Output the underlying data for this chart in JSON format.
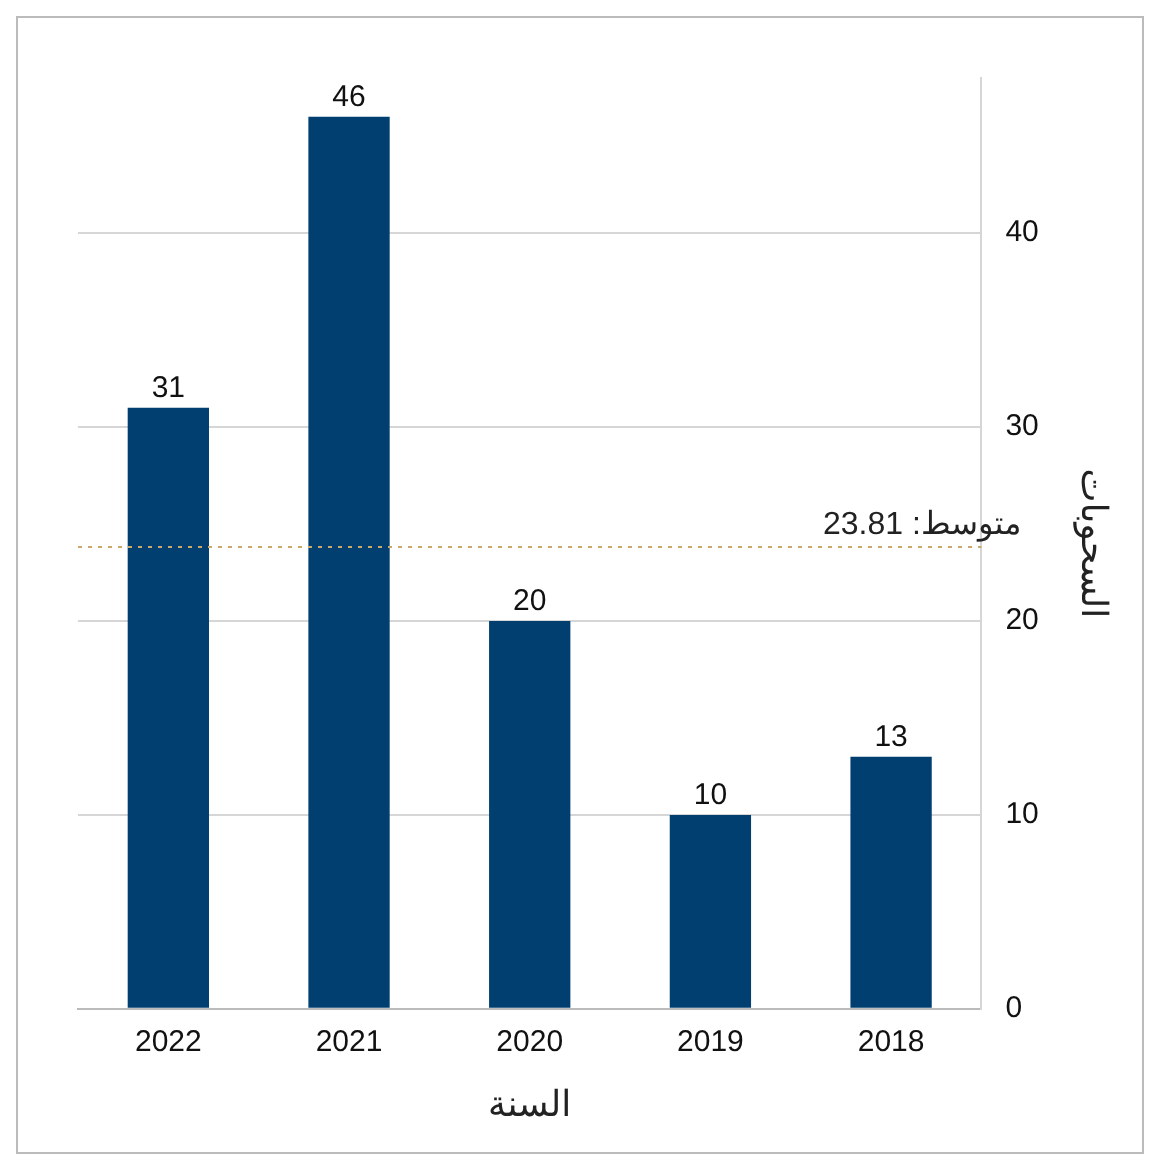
{
  "chart_data": {
    "type": "bar",
    "xlabel": "السنة",
    "ylabel": "السحوبات",
    "categories": [
      "2022",
      "2021",
      "2020",
      "2019",
      "2018"
    ],
    "values": [
      31,
      46,
      20,
      10,
      13
    ],
    "color": "#003f70",
    "ylim": [
      0,
      48
    ],
    "yticks": [
      0,
      10,
      20,
      30,
      40
    ],
    "grid": "y",
    "data_labels": true,
    "legend": false,
    "ref_lines": [
      {
        "axis": "y",
        "value": 23.81,
        "label": "متوسط: 23.81",
        "color": "#c9a86a",
        "line_style": "dotted"
      }
    ]
  }
}
